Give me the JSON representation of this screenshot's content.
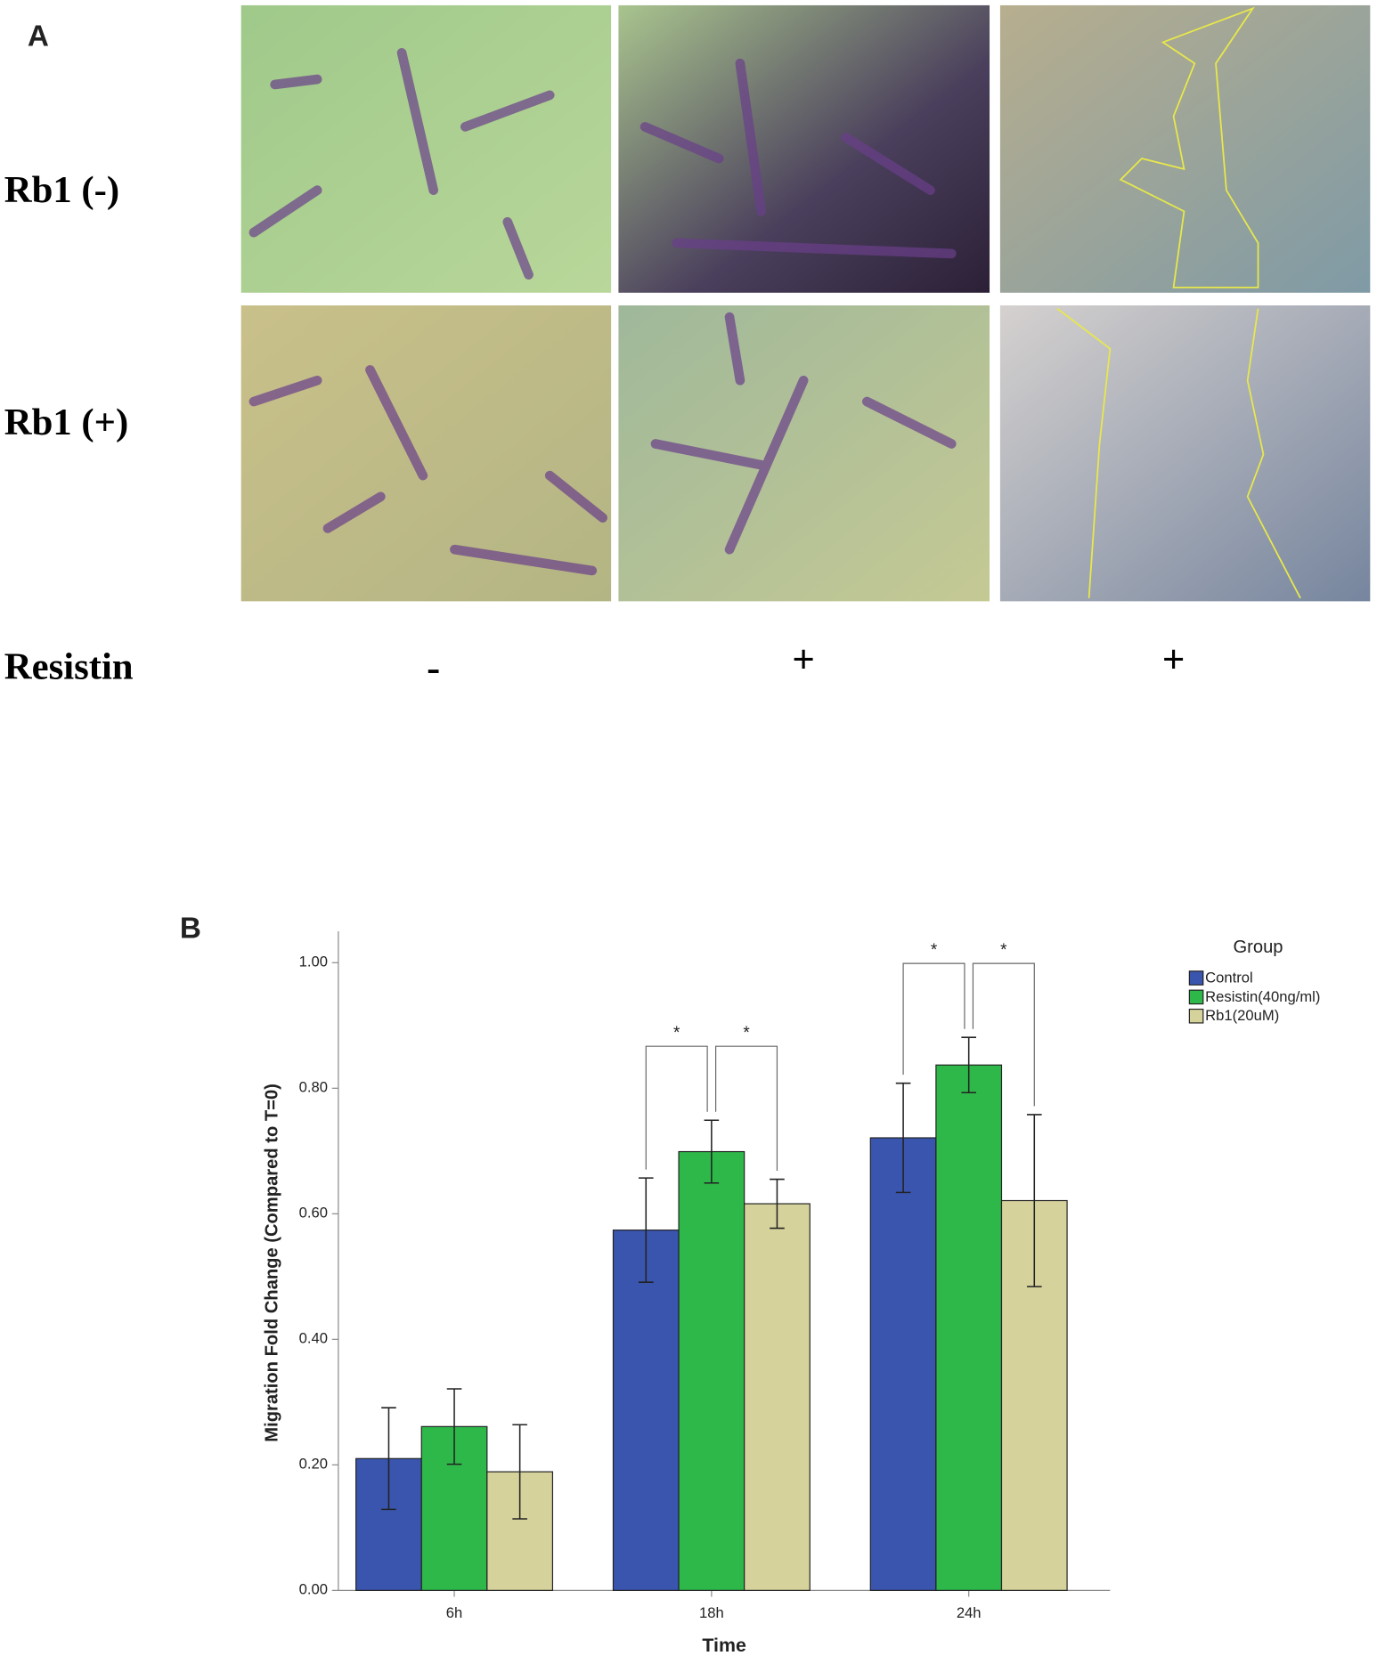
{
  "panel_a": {
    "label": "A",
    "rows": [
      "Rb1 (-)",
      "Rb1 (+)"
    ],
    "treatment_label": "Resistin",
    "treatment_marks": [
      "-",
      "+",
      "+"
    ]
  },
  "chart_data": {
    "type": "bar",
    "panel_label": "B",
    "x_label": "Time",
    "y_label": "Migration Fold Change (Compared to T=0)",
    "categories": [
      "6h",
      "18h",
      "24h"
    ],
    "legend_title": "Group",
    "legend_position": "right",
    "series": [
      {
        "name": "Control",
        "color": "#3a55ae",
        "values": [
          0.21,
          0.574,
          0.721
        ],
        "errors": [
          0.081,
          0.083,
          0.087
        ]
      },
      {
        "name": "Resistin(40ng/ml)",
        "color": "#2fb84a",
        "values": [
          0.261,
          0.699,
          0.837
        ],
        "errors": [
          0.06,
          0.05,
          0.044
        ]
      },
      {
        "name": "Rb1(20uM)",
        "color": "#d6d29c",
        "values": [
          0.189,
          0.616,
          0.621
        ],
        "errors": [
          0.075,
          0.039,
          0.137
        ]
      }
    ],
    "ylim": [
      0,
      1.05
    ],
    "yticks": [
      {
        "value": 0,
        "label": "0.00"
      },
      {
        "value": 0.2,
        "label": "0.20"
      },
      {
        "value": 0.4,
        "label": "0.40"
      },
      {
        "value": 0.6,
        "label": "0.60"
      },
      {
        "value": 0.8,
        "label": "0.80"
      },
      {
        "value": 1,
        "label": "1.00"
      }
    ],
    "significance": [
      {
        "category": "18h",
        "groups": [
          "Control",
          "Resistin(40ng/ml)"
        ],
        "label": "*"
      },
      {
        "category": "18h",
        "groups": [
          "Resistin(40ng/ml)",
          "Rb1(20uM)"
        ],
        "label": "*"
      },
      {
        "category": "24h",
        "groups": [
          "Control",
          "Resistin(40ng/ml)"
        ],
        "label": "*"
      },
      {
        "category": "24h",
        "groups": [
          "Resistin(40ng/ml)",
          "Rb1(20uM)"
        ],
        "label": "*"
      }
    ]
  }
}
